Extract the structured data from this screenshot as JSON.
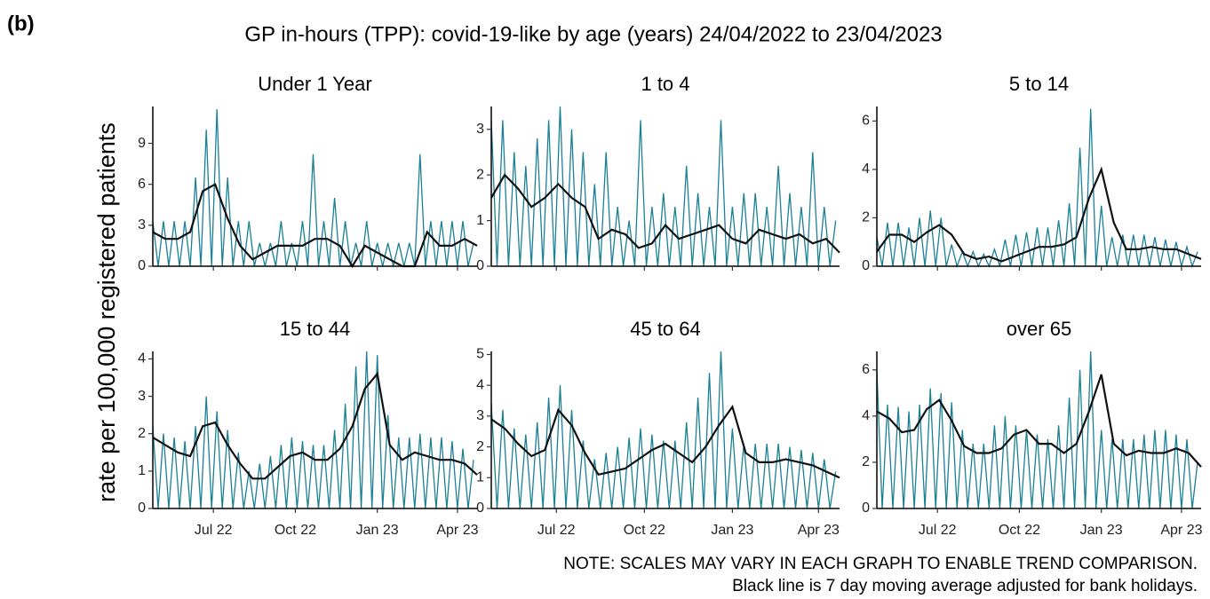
{
  "chart_data": {
    "type": "line",
    "label": "(b)",
    "title": "GP in-hours (TPP): covid-19-like by age (years) 24/04/2022 to 23/04/2023",
    "ylabel": "rate per 100,000 registered patients",
    "notes": [
      "NOTE: SCALES MAY VARY IN EACH GRAPH TO ENABLE TREND COMPARISON.",
      "Black line is 7 day moving average adjusted for bank holidays."
    ],
    "raw_color": "#1a8096",
    "avg_color": "#111111",
    "xlim": [
      0,
      364
    ],
    "xticks": [
      {
        "value": 68,
        "label": "Jul 22"
      },
      {
        "value": 160,
        "label": "Oct 22"
      },
      {
        "value": 252,
        "label": "Jan 23"
      },
      {
        "value": 342,
        "label": "Apr 23"
      }
    ],
    "x_raw": [
      0,
      6,
      12,
      18,
      24,
      30,
      36,
      42,
      48,
      54,
      60,
      66,
      72,
      78,
      84,
      90,
      96,
      102,
      108,
      114,
      120,
      126,
      132,
      138,
      144,
      150,
      156,
      162,
      168,
      174,
      180,
      186,
      192,
      198,
      204,
      210,
      216,
      222,
      228,
      234,
      240,
      246,
      252,
      258,
      264,
      270,
      276,
      282,
      288,
      294,
      300,
      306,
      312,
      318,
      324,
      330,
      336,
      342,
      348,
      354,
      360
    ],
    "x_avg": [
      0,
      14,
      28,
      42,
      56,
      70,
      84,
      98,
      112,
      126,
      140,
      154,
      168,
      182,
      196,
      210,
      224,
      238,
      252,
      266,
      280,
      294,
      308,
      322,
      336,
      350,
      364
    ],
    "panels": [
      {
        "title": "Under 1 Year",
        "ylim": [
          0,
          11.7
        ],
        "yticks": [
          0,
          3,
          6,
          9
        ],
        "raw": [
          3.3,
          0,
          3.3,
          0,
          3.3,
          0,
          3.3,
          0,
          6.5,
          0,
          10,
          0,
          11.5,
          0,
          6.5,
          0,
          3.3,
          0,
          3.3,
          0,
          1.7,
          0,
          1.7,
          0,
          3.3,
          0,
          1.7,
          0,
          3.3,
          0,
          8.2,
          0,
          3.3,
          0,
          5,
          0,
          3.3,
          0,
          1.7,
          0,
          3.3,
          0,
          1.7,
          0,
          1.7,
          0,
          1.7,
          0,
          1.7,
          0,
          8.2,
          0,
          3.3,
          0,
          3.3,
          0,
          3.3,
          0,
          3.3,
          0,
          1.7
        ],
        "avg": [
          2.5,
          2,
          2,
          2.5,
          5.5,
          6,
          3.5,
          1.5,
          0.5,
          1,
          1.5,
          1.5,
          1.5,
          2,
          2,
          1.5,
          0,
          1.5,
          1,
          0.5,
          0,
          0,
          2.5,
          1.5,
          1.5,
          2,
          1.5
        ]
      },
      {
        "title": "1 to 4",
        "ylim": [
          0,
          3.5
        ],
        "yticks": [
          0,
          1,
          2,
          3
        ],
        "raw": [
          3.2,
          0,
          3.2,
          0,
          2.5,
          0,
          2.2,
          0,
          2.8,
          0,
          3.2,
          0,
          3.5,
          0,
          3,
          0,
          2.5,
          0,
          1.8,
          0,
          2.5,
          0,
          1.3,
          0,
          1,
          0,
          3.2,
          0,
          1.3,
          0,
          1.6,
          0,
          1.3,
          0,
          2.2,
          0,
          1.6,
          0,
          1.3,
          0,
          3.2,
          0,
          1.3,
          0,
          1.6,
          0,
          1.6,
          0,
          1.3,
          0,
          2.2,
          0,
          1.6,
          0,
          1.3,
          0,
          2.5,
          0,
          1.3,
          0,
          1
        ],
        "avg": [
          1.5,
          2,
          1.7,
          1.3,
          1.5,
          1.8,
          1.5,
          1.3,
          0.6,
          0.8,
          0.7,
          0.4,
          0.5,
          0.9,
          0.6,
          0.7,
          0.8,
          0.9,
          0.6,
          0.5,
          0.8,
          0.7,
          0.6,
          0.7,
          0.5,
          0.6,
          0.3
        ]
      },
      {
        "title": "5 to 14",
        "ylim": [
          0,
          6.6
        ],
        "yticks": [
          0,
          2,
          4,
          6
        ],
        "raw": [
          1.2,
          0,
          1.8,
          0,
          1.8,
          0,
          1.6,
          0,
          2,
          0,
          2.3,
          0,
          2,
          0,
          0.9,
          0,
          0.6,
          0,
          0.6,
          0,
          0.5,
          0,
          0.7,
          0,
          1.1,
          0,
          1.3,
          0,
          1.4,
          0,
          1.6,
          0,
          1.6,
          0,
          1.9,
          0,
          2.6,
          0,
          4.9,
          0,
          6.5,
          0,
          2.5,
          0,
          1.2,
          0,
          1.3,
          0,
          1.3,
          0,
          1.3,
          0,
          1.2,
          0,
          1.1,
          0,
          1,
          0,
          0.8,
          0,
          0.6
        ],
        "avg": [
          0.6,
          1.3,
          1.3,
          1,
          1.4,
          1.7,
          1.3,
          0.5,
          0.3,
          0.4,
          0.2,
          0.4,
          0.6,
          0.8,
          0.8,
          0.9,
          1.2,
          2.8,
          4,
          1.8,
          0.7,
          0.7,
          0.8,
          0.7,
          0.7,
          0.5,
          0.3
        ]
      },
      {
        "title": "15 to 44",
        "ylim": [
          0,
          4.2
        ],
        "yticks": [
          0,
          1,
          2,
          3,
          4
        ],
        "raw": [
          2.2,
          0,
          2,
          0,
          1.9,
          0,
          1.8,
          0,
          2.2,
          0,
          3,
          0,
          2.6,
          0,
          2.1,
          0,
          1.5,
          0,
          1,
          0,
          1.2,
          0,
          1.4,
          0,
          1.7,
          0,
          1.9,
          0,
          1.8,
          0,
          1.7,
          0,
          1.7,
          0,
          2.1,
          0,
          2.8,
          0,
          3.8,
          0,
          4.2,
          0,
          4.1,
          0,
          2.5,
          0,
          1.9,
          0,
          1.9,
          0,
          2,
          0,
          1.9,
          0,
          1.9,
          0,
          1.8,
          0,
          1.6,
          0,
          1.3
        ],
        "avg": [
          1.9,
          1.7,
          1.5,
          1.4,
          2.2,
          2.3,
          1.7,
          1.2,
          0.8,
          0.8,
          1.1,
          1.4,
          1.5,
          1.3,
          1.3,
          1.6,
          2.2,
          3.2,
          3.6,
          1.7,
          1.3,
          1.5,
          1.4,
          1.3,
          1.3,
          1.2,
          0.9
        ]
      },
      {
        "title": "45 to 64",
        "ylim": [
          0,
          5.1
        ],
        "yticks": [
          0,
          1,
          2,
          3,
          4,
          5
        ],
        "raw": [
          3.4,
          0,
          3.2,
          0,
          2.6,
          0,
          2.4,
          0,
          2.8,
          0,
          3.6,
          0,
          4,
          0,
          3.2,
          0,
          2.2,
          0,
          1.6,
          0,
          1.8,
          0,
          2,
          0,
          2.3,
          0,
          2.6,
          0,
          2.4,
          0,
          2.2,
          0,
          2.2,
          0,
          2.8,
          0,
          3.6,
          0,
          4.4,
          0,
          5.1,
          0,
          2.6,
          0,
          2.1,
          0,
          2.1,
          0,
          2.1,
          0,
          2.1,
          0,
          2,
          0,
          1.9,
          0,
          1.8,
          0,
          1.6,
          0,
          1.2
        ],
        "avg": [
          2.9,
          2.6,
          2.1,
          1.7,
          1.9,
          3.2,
          2.7,
          1.8,
          1.1,
          1.2,
          1.3,
          1.6,
          1.9,
          2.1,
          1.8,
          1.5,
          2,
          2.7,
          3.3,
          1.8,
          1.5,
          1.5,
          1.6,
          1.5,
          1.4,
          1.2,
          1
        ]
      },
      {
        "title": "over 65",
        "ylim": [
          0,
          6.8
        ],
        "yticks": [
          0,
          2,
          4,
          6
        ],
        "raw": [
          6,
          0,
          4.5,
          0,
          4.4,
          0,
          4.2,
          0,
          4.5,
          0,
          5.2,
          0,
          5,
          0,
          4.6,
          0,
          3.4,
          0,
          2.8,
          0,
          2.8,
          0,
          3.6,
          0,
          4,
          0,
          3.6,
          0,
          3.4,
          0,
          3.2,
          0,
          3,
          0,
          3.6,
          0,
          4.8,
          0,
          6,
          0,
          6.8,
          0,
          3.4,
          0,
          3,
          0,
          3,
          0,
          3,
          0,
          3.2,
          0,
          3.4,
          0,
          3.4,
          0,
          3.2,
          0,
          3,
          0,
          2
        ],
        "avg": [
          4.2,
          3.9,
          3.3,
          3.4,
          4.3,
          4.7,
          3.8,
          2.7,
          2.4,
          2.4,
          2.6,
          3.2,
          3.4,
          2.8,
          2.8,
          2.4,
          2.8,
          4.2,
          5.8,
          2.8,
          2.3,
          2.5,
          2.4,
          2.4,
          2.6,
          2.4,
          1.8
        ]
      }
    ]
  }
}
